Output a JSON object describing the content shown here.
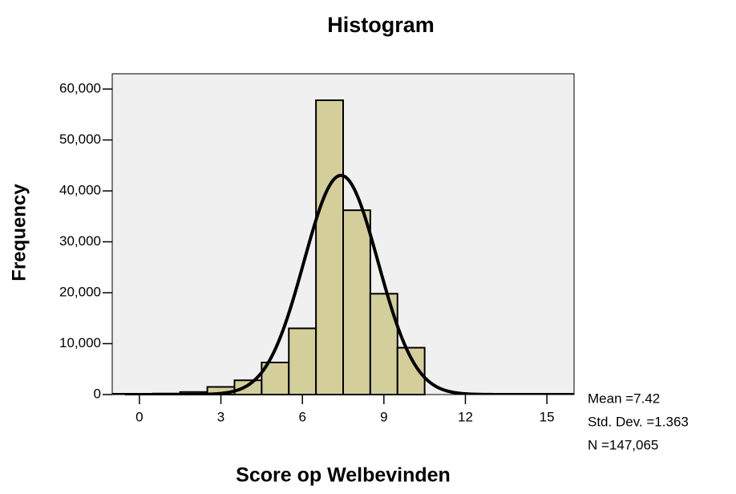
{
  "chart_data": {
    "type": "histogram",
    "title": "Histogram",
    "x_label": "Score op Welbevinden",
    "y_label": "Frequency",
    "bins": [
      -0.5,
      0.5,
      1.5,
      2.5,
      3.5,
      4.5,
      5.5,
      6.5,
      7.5,
      8.5,
      9.5,
      10.5
    ],
    "values": [
      100,
      200,
      500,
      1500,
      2800,
      6300,
      13000,
      57800,
      36200,
      19800,
      9200
    ],
    "color": "#d4cf9a",
    "xlim": [
      -1,
      16
    ],
    "xticks": [
      0,
      3,
      6,
      9,
      12,
      15
    ],
    "ylim": [
      0,
      63000
    ],
    "yticks": [
      0,
      {
        "value": 10000,
        "label": "10,000"
      },
      {
        "value": 20000,
        "label": "20,000"
      },
      {
        "value": 30000,
        "label": "30,000"
      },
      {
        "value": 40000,
        "label": "40,000"
      },
      {
        "value": 50000,
        "label": "50,000"
      },
      {
        "value": 60000,
        "label": "60,000"
      }
    ],
    "normal_curve": {
      "mean": 7.42,
      "std_dev": 1.363,
      "n": 147065,
      "labels": [
        "Mean =7.42",
        "Std. Dev. =1.363",
        "N =147,065"
      ]
    }
  }
}
